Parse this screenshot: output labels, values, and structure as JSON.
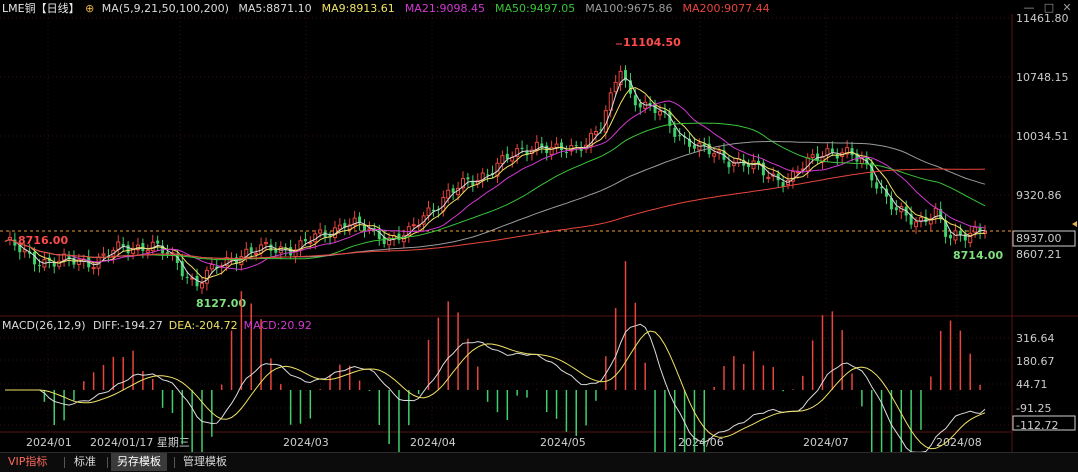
{
  "header": {
    "title": "LME铜【日线】",
    "ma_params": "MA(5,9,21,50,100,200)",
    "ma_items": [
      {
        "label": "MA5:8871.10",
        "color": "#dcdcdc"
      },
      {
        "label": "MA9:8913.61",
        "color": "#f0e266"
      },
      {
        "label": "MA21:9098.45",
        "color": "#d23ad2"
      },
      {
        "label": "MA50:9497.05",
        "color": "#39c43a"
      },
      {
        "label": "MA100:9675.86",
        "color": "#9a9a9a"
      },
      {
        "label": "MA200:9077.44",
        "color": "#e8453c"
      }
    ]
  },
  "macd_header": {
    "label": "MACD(26,12,9)",
    "items": [
      {
        "label": "DIFF:-194.27",
        "color": "#dcdcdc"
      },
      {
        "label": "DEA:-204.72",
        "color": "#f0e266"
      },
      {
        "label": "MACD:20.92",
        "color": "#d23ad2"
      }
    ]
  },
  "right_axis": {
    "price_ticks": [
      "11461.80",
      "10748.15",
      "10034.51",
      "9320.86",
      "8607.21"
    ],
    "current_price": "8937.00",
    "macd_ticks": [
      "316.64",
      "180.67",
      "44.71",
      "-91.25",
      "-112.72"
    ]
  },
  "annotations": {
    "high": "11104.50",
    "low1": "8127.00",
    "low2": "8714.00",
    "ref_line": "8716.00"
  },
  "dates": [
    "2024/01",
    "2024/01/17 星期三",
    "2024/03",
    "2024/04",
    "2024/05",
    "2024/06",
    "2024/07",
    "2024/08"
  ],
  "tabs": [
    {
      "label": "VIP指标",
      "active": false
    },
    {
      "label": "标准",
      "active": false
    },
    {
      "label": "另存模板",
      "active": true
    },
    {
      "label": "管理模板",
      "active": false
    }
  ],
  "colors": {
    "up": "#e8453c",
    "down": "#3fcf6c",
    "background": "#000000",
    "grid": "#3a0f0f"
  },
  "icons": [
    "plus-circle-icon",
    "minus-icon",
    "square-icon",
    "close-icon"
  ]
}
